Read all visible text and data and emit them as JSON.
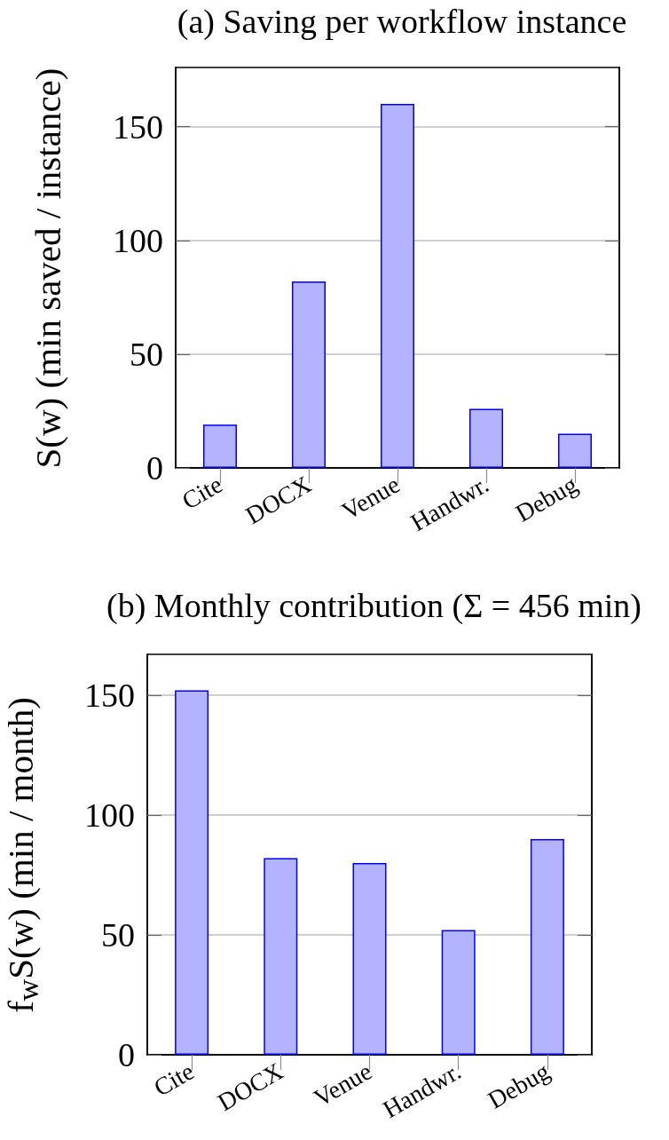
{
  "chart_data": [
    {
      "type": "bar",
      "title": "(a) Saving per workflow instance",
      "ylabel": "S(w) (min saved / instance)",
      "categories": [
        "Cite",
        "DOCX",
        "Venue",
        "Handwr.",
        "Debug"
      ],
      "values": [
        19,
        82,
        160,
        26,
        15
      ],
      "color": "#b3b3ff",
      "ylim": [
        0,
        176
      ],
      "yticks": [
        0,
        50,
        100,
        150
      ],
      "grid": "y"
    },
    {
      "type": "bar",
      "title": "(b) Monthly contribution (Σ = 456 min)",
      "ylabel": "f$_{w}$S(w) (min / month)",
      "categories": [
        "Cite",
        "DOCX",
        "Venue",
        "Handwr.",
        "Debug"
      ],
      "values": [
        152,
        82,
        80,
        52,
        90
      ],
      "color": "#b3b3ff",
      "ylim": [
        0,
        167
      ],
      "yticks": [
        0,
        50,
        100,
        150
      ],
      "grid": "y"
    }
  ]
}
